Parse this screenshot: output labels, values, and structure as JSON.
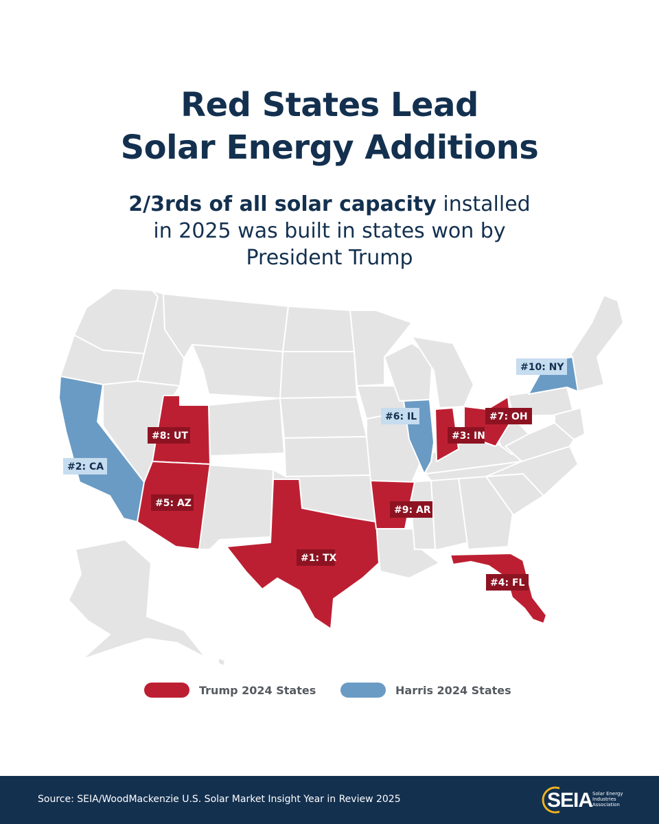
{
  "title": {
    "line1": "Red States Lead",
    "line2": "Solar Energy Additions"
  },
  "subtitle": {
    "bold": "2/3rds of all solar capacity",
    "rest1": " installed",
    "line2": "in 2025 was built in states won by",
    "line3": "President Trump"
  },
  "colors": {
    "trump": "#bd1f32",
    "harris": "#6a9bc4",
    "other": "#e4e4e4",
    "navy": "#13304f"
  },
  "map_labels": [
    {
      "name": "label-tx",
      "text": "#1: TX",
      "party": "trump"
    },
    {
      "name": "label-ca",
      "text": "#2: CA",
      "party": "harris"
    },
    {
      "name": "label-in",
      "text": "#3: IN",
      "party": "trump"
    },
    {
      "name": "label-fl",
      "text": "#4: FL",
      "party": "trump"
    },
    {
      "name": "label-az",
      "text": "#5: AZ",
      "party": "trump"
    },
    {
      "name": "label-il",
      "text": "#6: IL",
      "party": "harris"
    },
    {
      "name": "label-oh",
      "text": "#7: OH",
      "party": "trump"
    },
    {
      "name": "label-ut",
      "text": "#8: UT",
      "party": "trump"
    },
    {
      "name": "label-ar",
      "text": "#9: AR",
      "party": "trump"
    },
    {
      "name": "label-ny",
      "text": "#10: NY",
      "party": "harris"
    }
  ],
  "legend": {
    "trump": "Trump 2024 States",
    "harris": "Harris 2024 States"
  },
  "footer": {
    "source": "Source: SEIA/WoodMackenzie U.S. Solar Market Insight Year in Review 2025",
    "logo_word": "SEIA",
    "logo_tagline": "Solar Energy Industries Association"
  }
}
